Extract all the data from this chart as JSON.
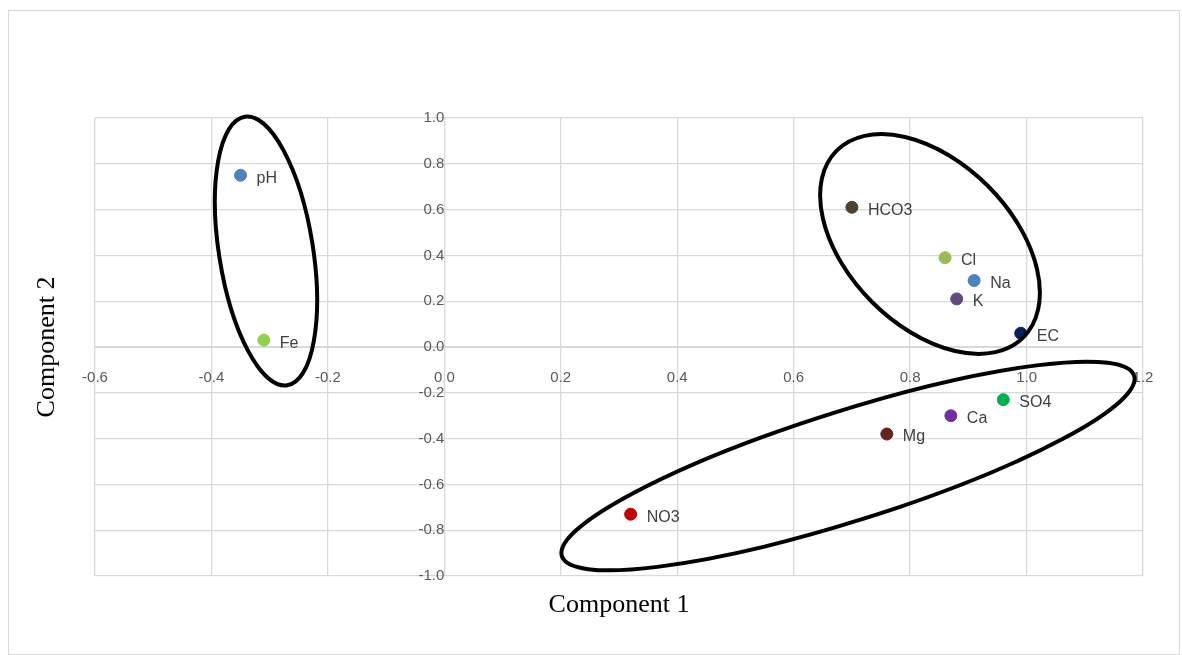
{
  "chart_data": {
    "type": "scatter",
    "xlabel": "Component 1",
    "ylabel": "Component 2",
    "xlim": [
      -0.6,
      1.2
    ],
    "ylim": [
      -1.0,
      1.0
    ],
    "xticks": [
      -0.6,
      -0.4,
      -0.2,
      {
        "value": 0,
        "label": "0.0"
      },
      0.2,
      0.4,
      0.6,
      0.8,
      {
        "value": 1,
        "label": "1.0"
      },
      1.2
    ],
    "yticks": [
      {
        "value": -1,
        "label": "-1.0"
      },
      -0.8,
      -0.6,
      -0.4,
      -0.2,
      {
        "value": 0,
        "label": "0.0"
      },
      0.2,
      0.4,
      0.6,
      0.8,
      {
        "value": 1,
        "label": "1.0"
      }
    ],
    "grid": true,
    "legend": false,
    "marker": "circle",
    "series": [
      {
        "name": "pH",
        "color": "#4f81bd",
        "x": [
          -0.35
        ],
        "values": [
          0.75
        ]
      },
      {
        "name": "Fe",
        "color": "#92d050",
        "x": [
          -0.31
        ],
        "values": [
          0.03
        ]
      },
      {
        "name": "HCO3",
        "color": "#4a452a",
        "x": [
          0.7
        ],
        "values": [
          0.61
        ]
      },
      {
        "name": "Cl",
        "color": "#9bbb59",
        "x": [
          0.86
        ],
        "values": [
          0.39
        ]
      },
      {
        "name": "Na",
        "color": "#4f81bd",
        "x": [
          0.91
        ],
        "values": [
          0.29
        ]
      },
      {
        "name": "K",
        "color": "#604a7b",
        "x": [
          0.88
        ],
        "values": [
          0.21
        ]
      },
      {
        "name": "EC",
        "color": "#002060",
        "x": [
          0.99
        ],
        "values": [
          0.06
        ]
      },
      {
        "name": "SO4",
        "color": "#00b050",
        "x": [
          0.96
        ],
        "values": [
          -0.23
        ]
      },
      {
        "name": "Ca",
        "color": "#7030a0",
        "x": [
          0.87
        ],
        "values": [
          -0.3
        ]
      },
      {
        "name": "Mg",
        "color": "#632523",
        "x": [
          0.76
        ],
        "values": [
          -0.38
        ]
      },
      {
        "name": "NO3",
        "color": "#c00000",
        "x": [
          0.32
        ],
        "values": [
          -0.73
        ]
      }
    ]
  }
}
